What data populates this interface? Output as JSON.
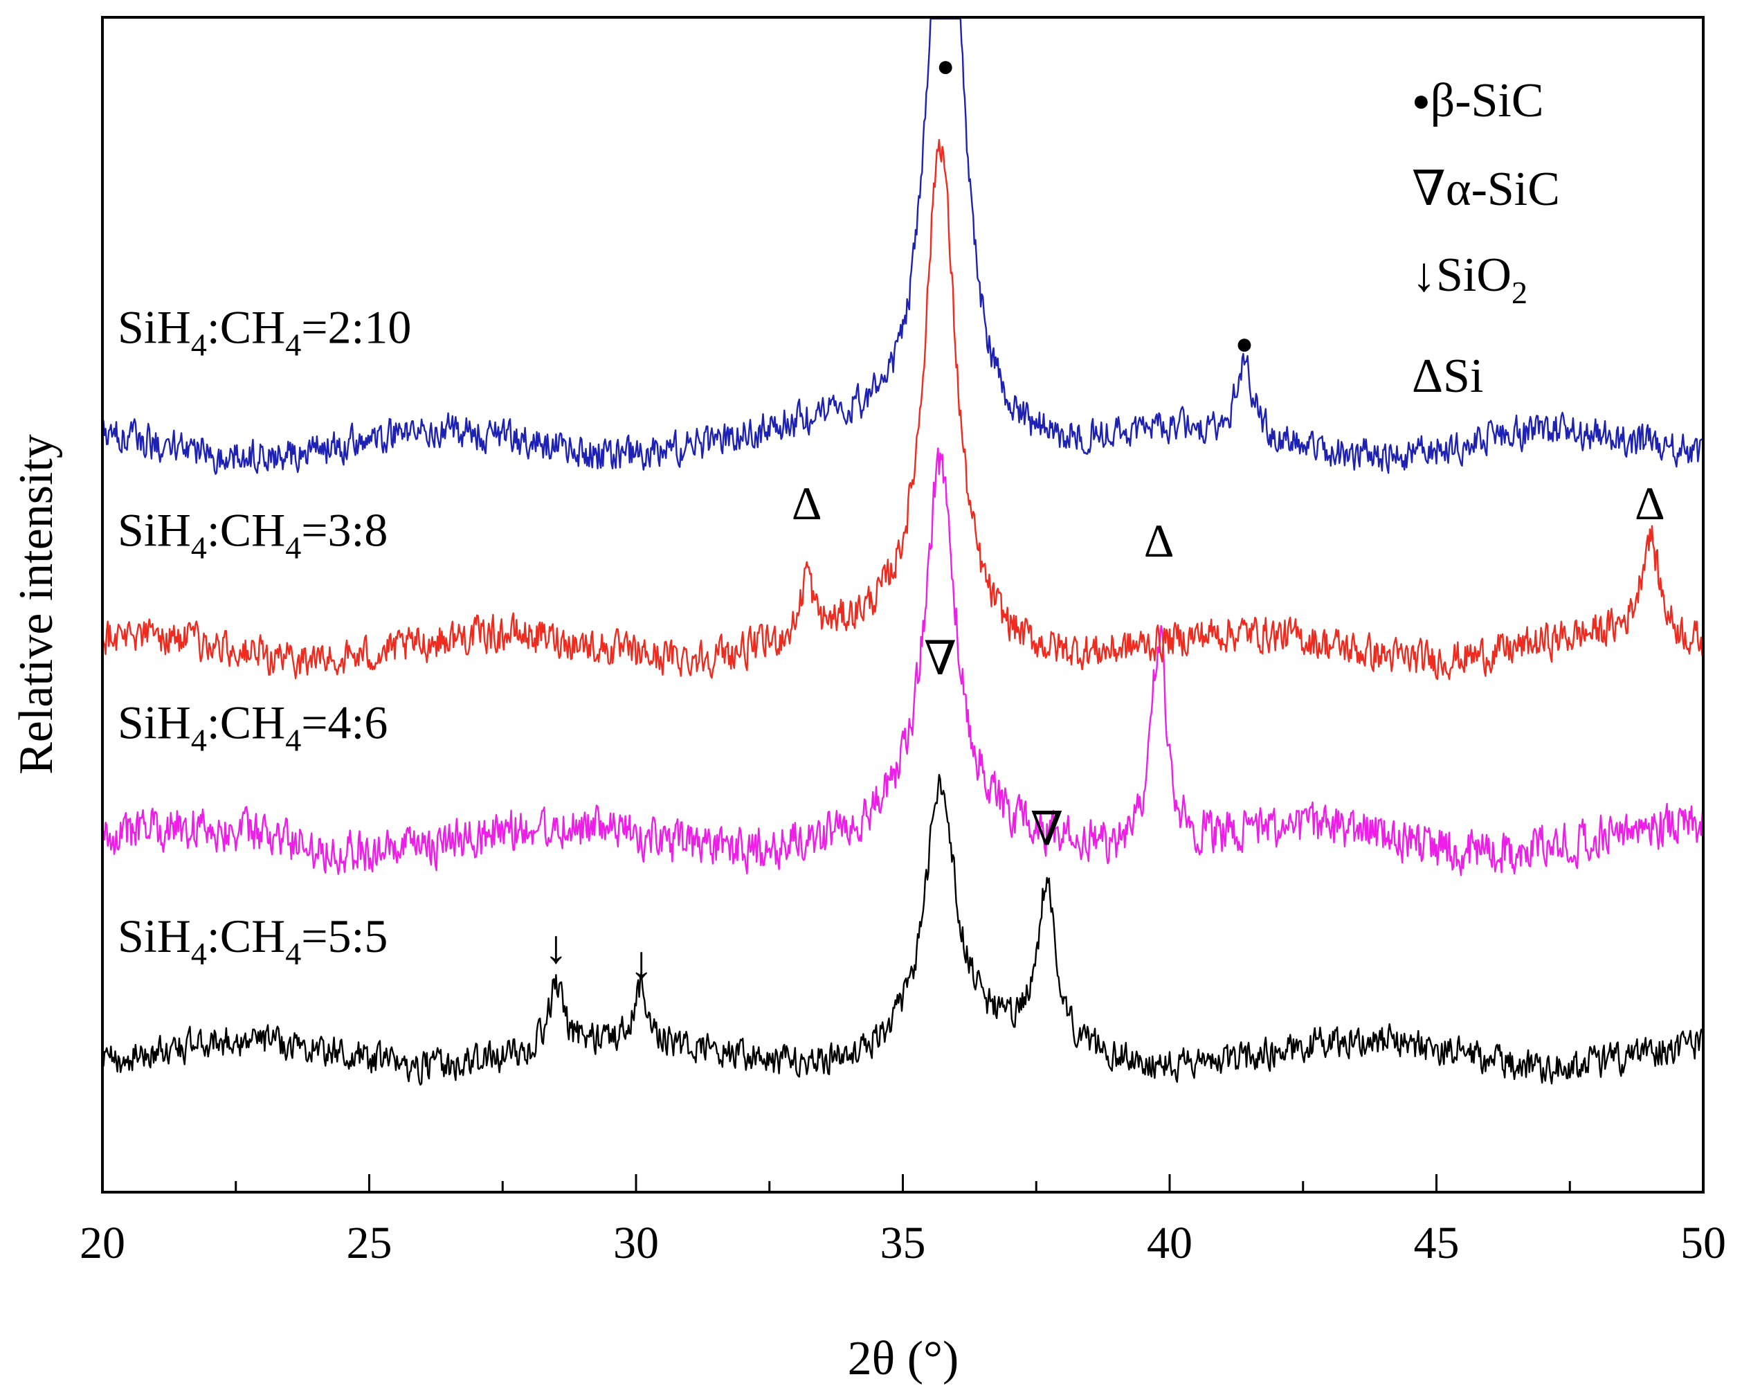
{
  "chart_data": {
    "type": "line",
    "title": "",
    "xlabel": "2θ (°)",
    "ylabel": "Relative intensity",
    "xlim": [
      20,
      50
    ],
    "ylim": [
      0,
      11
    ],
    "x_ticks": [
      "20",
      "25",
      "30",
      "35",
      "40",
      "45",
      "50"
    ],
    "legend": {
      "placement": "top-right",
      "items": [
        {
          "marker": "●",
          "label": "β-SiC"
        },
        {
          "marker": "∇",
          "label": "α-SiC"
        },
        {
          "marker": "↓",
          "label": "SiO",
          "sub": "2"
        },
        {
          "marker": "Δ",
          "label": "Si"
        }
      ]
    },
    "series": [
      {
        "name": "SiH4:CH4=5:5",
        "label_parts": [
          "SiH",
          "4",
          ":CH",
          "4",
          "=5:5"
        ],
        "color": "#000000",
        "baseline": 1.3,
        "noise": 0.13,
        "peaks": [
          {
            "x": 28.5,
            "h": 0.6,
            "w": 0.15
          },
          {
            "x": 30.1,
            "h": 0.5,
            "w": 0.15
          },
          {
            "x": 35.7,
            "h": 2.4,
            "w": 0.35
          },
          {
            "x": 37.7,
            "h": 1.5,
            "w": 0.2
          }
        ],
        "markers": [
          {
            "x": 28.5,
            "symbol": "↓",
            "y": 2.15
          },
          {
            "x": 30.1,
            "symbol": "↓",
            "y": 2.0
          },
          {
            "x": 37.7,
            "symbol": "∇",
            "y": 3.25
          }
        ]
      },
      {
        "name": "SiH4:CH4=4:6",
        "label_parts": [
          "SiH",
          "4",
          ":CH",
          "4",
          "=4:6"
        ],
        "color": "#ee1ee8",
        "baseline": 3.3,
        "noise": 0.18,
        "peaks": [
          {
            "x": 35.7,
            "h": 3.4,
            "w": 0.35
          },
          {
            "x": 39.8,
            "h": 2.0,
            "w": 0.18
          }
        ],
        "markers": [
          {
            "x": 35.7,
            "symbol": "∇",
            "y": 4.85
          }
        ]
      },
      {
        "name": "SiH4:CH4=3:8",
        "label_parts": [
          "SiH",
          "4",
          ":CH",
          "4",
          "=3:8"
        ],
        "color": "#ee2b1e",
        "baseline": 5.1,
        "noise": 0.15,
        "peaks": [
          {
            "x": 33.2,
            "h": 0.6,
            "w": 0.12
          },
          {
            "x": 35.7,
            "h": 4.7,
            "w": 0.35
          },
          {
            "x": 49.0,
            "h": 0.95,
            "w": 0.2
          }
        ],
        "markers": [
          {
            "x": 33.2,
            "symbol": "Δ",
            "y": 6.3
          },
          {
            "x": 39.8,
            "symbol": "Δ",
            "y": 5.95
          },
          {
            "x": 49.0,
            "symbol": "Δ",
            "y": 6.3
          }
        ]
      },
      {
        "name": "SiH4:CH4=2:10",
        "label_parts": [
          "SiH",
          "4",
          ":CH",
          "4",
          "=2:10"
        ],
        "color": "#1e22b4",
        "baseline": 7.0,
        "noise": 0.14,
        "peaks": [
          {
            "x": 35.8,
            "h": 6.8,
            "w": 0.35
          },
          {
            "x": 41.4,
            "h": 0.7,
            "w": 0.18
          }
        ],
        "markers": [
          {
            "x": 35.8,
            "symbol": "●",
            "y": 10.45
          },
          {
            "x": 41.4,
            "symbol": "●",
            "y": 7.85
          }
        ]
      }
    ]
  }
}
